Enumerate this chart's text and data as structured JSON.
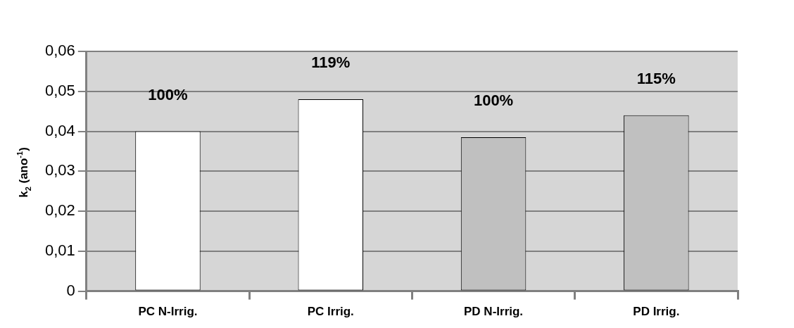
{
  "chart_data": {
    "type": "bar",
    "ylabel": "k$_{2}$ (ano$^{-1}$)",
    "categories": [
      "PC N-Irrig.",
      "PC Irrig.",
      "PD N-Irrig.",
      "PD Irrig."
    ],
    "values": [
      0.04,
      0.048,
      0.0385,
      0.044
    ],
    "colors": [
      "#ffffff",
      "#ffffff",
      "#c0c0c0",
      "#c0c0c0"
    ],
    "annotations": [
      {
        "text": "100%",
        "x": "PC N-Irrig.",
        "y": 0.04
      },
      {
        "text": "119%",
        "x": "PC Irrig.",
        "y": 0.048
      },
      {
        "text": "100%",
        "x": "PD N-Irrig.",
        "y": 0.0385
      },
      {
        "text": "115%",
        "x": "PD Irrig.",
        "y": 0.044
      }
    ],
    "ylim": [
      0,
      0.06
    ],
    "yticks": [
      0,
      {
        "value": 0.01,
        "label": "0,01"
      },
      {
        "value": 0.02,
        "label": "0,02"
      },
      {
        "value": 0.03,
        "label": "0,03"
      },
      {
        "value": 0.04,
        "label": "0,04"
      },
      {
        "value": 0.05,
        "label": "0,05"
      },
      {
        "value": 0.06,
        "label": "0,06"
      }
    ],
    "grid": "y"
  }
}
